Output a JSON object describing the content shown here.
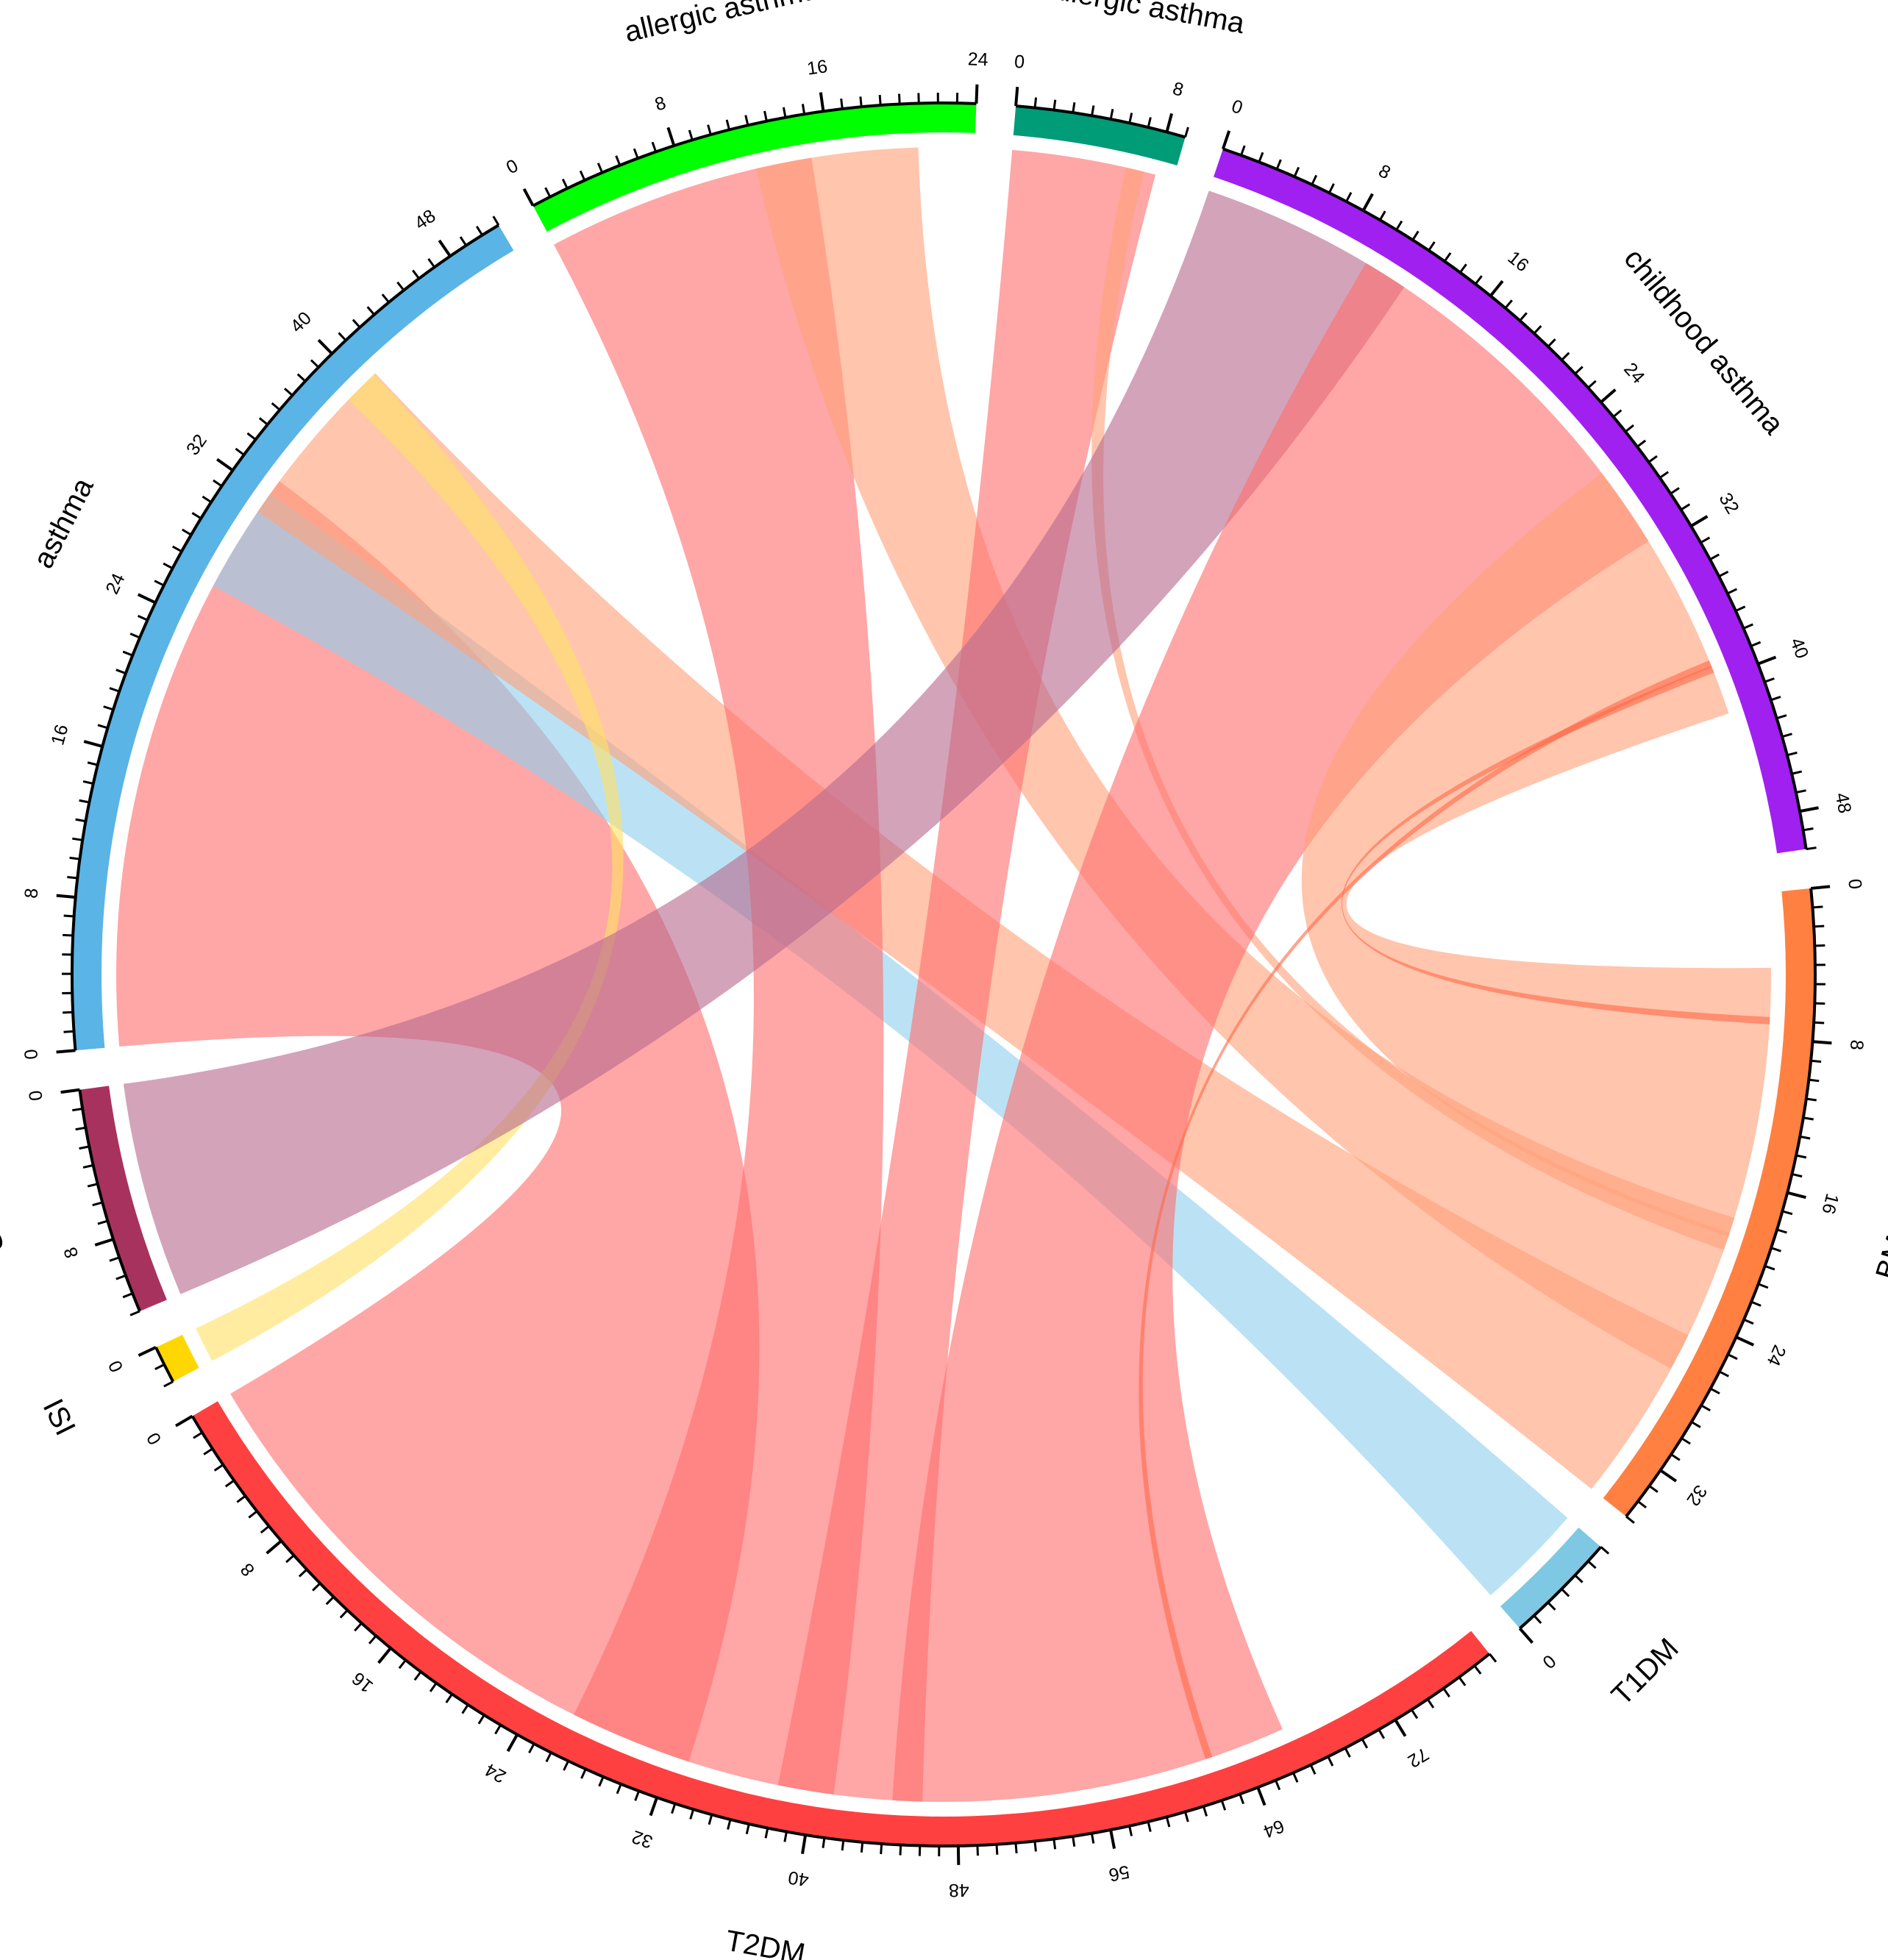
{
  "chart_data": {
    "type": "chord",
    "title": "",
    "sectors": [
      {
        "key": "asthma",
        "label": "asthma",
        "total": 51,
        "color": "#5ab4e6",
        "start": 0,
        "axis_direction": "clockwise",
        "tick_labels": [
          "0",
          "8",
          "16",
          "24",
          "32",
          "40",
          "48"
        ]
      },
      {
        "key": "allergic",
        "label": "allergic asthma",
        "total": 24,
        "color": "#00ff00",
        "start": 0,
        "axis_direction": "clockwise",
        "tick_labels": [
          "0",
          "8",
          "16"
        ]
      },
      {
        "key": "nonallergic",
        "label": "nonallergic asthma",
        "total": 9,
        "color": "#009b77",
        "start": 0,
        "axis_direction": "clockwise",
        "tick_labels": [
          "0",
          "8"
        ]
      },
      {
        "key": "childhood",
        "label": "childhood asthma",
        "total": 50,
        "color": "#a020f0",
        "start": 0,
        "axis_direction": "clockwise",
        "tick_labels": [
          "0",
          "8",
          "16",
          "24",
          "32",
          "40",
          "48"
        ]
      },
      {
        "key": "bmi",
        "label": "BMI",
        "total": 35,
        "color": "#ff8040",
        "start": 0,
        "axis_direction": "clockwise",
        "tick_labels": [
          "0",
          "8",
          "16",
          "24",
          "32"
        ]
      },
      {
        "key": "t1dm",
        "label": "T1DM",
        "total": 6,
        "color": "#7ec8e3",
        "start": 0,
        "axis_direction": "counterclockwise",
        "tick_labels": [
          "0"
        ]
      },
      {
        "key": "t2dm",
        "label": "T2DM",
        "total": 78,
        "color": "#ff4040",
        "start": 0,
        "axis_direction": "counterclockwise",
        "tick_labels": [
          "0",
          "8",
          "16",
          "24",
          "32",
          "40",
          "48",
          "56",
          "64",
          "72"
        ]
      },
      {
        "key": "isi",
        "label": "ISI",
        "total": 2,
        "color": "#ffd700",
        "start": 0,
        "axis_direction": "counterclockwise",
        "tick_labels": [
          "0"
        ]
      },
      {
        "key": "fg",
        "label": "FG",
        "total": 12,
        "color": "#a8325e",
        "start": 0,
        "axis_direction": "counterclockwise",
        "tick_labels": [
          "0",
          "8"
        ]
      }
    ],
    "links": [
      {
        "from": "asthma",
        "to": "t2dm",
        "value": 33,
        "color": "#ff7070"
      },
      {
        "from": "asthma",
        "to": "t1dm",
        "value": 6,
        "color": "#8fd0ee"
      },
      {
        "from": "asthma",
        "to": "bmi",
        "value": 10,
        "color": "#ffa27a"
      },
      {
        "from": "asthma",
        "to": "isi",
        "value": 2,
        "color": "#ffe066"
      },
      {
        "from": "allergic",
        "to": "t2dm",
        "value": 15,
        "color": "#ff7070"
      },
      {
        "from": "allergic",
        "to": "bmi",
        "value": 9,
        "color": "#ffa27a"
      },
      {
        "from": "nonallergic",
        "to": "t2dm",
        "value": 8,
        "color": "#ff7070"
      },
      {
        "from": "nonallergic",
        "to": "bmi",
        "value": 1,
        "color": "#ffa27a"
      },
      {
        "from": "childhood",
        "to": "fg",
        "value": 12,
        "color": "#b86a8e"
      },
      {
        "from": "childhood",
        "to": "t2dm",
        "value": 22,
        "color": "#ff7070"
      },
      {
        "from": "childhood",
        "to": "bmi",
        "value": 15,
        "color": "#ffa27a"
      },
      {
        "from": "childhood",
        "to": "t2dm",
        "value": 0.4,
        "color": "#ff6a4a"
      },
      {
        "from": "childhood",
        "to": "bmi",
        "value": 0.4,
        "color": "#ff6a4a"
      }
    ]
  }
}
